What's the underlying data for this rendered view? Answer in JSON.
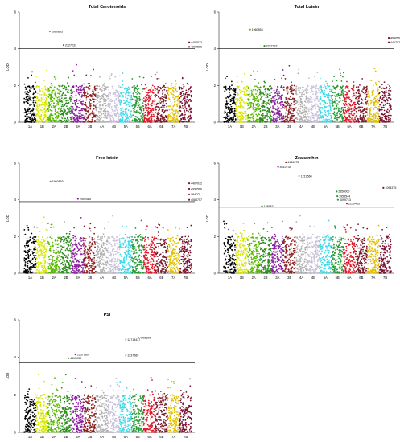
{
  "chart_data": [
    {
      "type": "scatter",
      "title": "Total Carotenoids",
      "ylabel": "LOD",
      "ylim": [
        0,
        6
      ],
      "yticks": [
        0,
        2,
        4,
        6
      ],
      "threshold": 4.0,
      "categories": [
        "1A",
        "1B",
        "2A",
        "2B",
        "3A",
        "3B",
        "4A",
        "4B",
        "5A",
        "5B",
        "6A",
        "6B",
        "7A",
        "7B"
      ],
      "peaks": [
        {
          "label": "1960853",
          "chrom": "2A",
          "pos": 0.15,
          "lod": 4.95
        },
        {
          "label": "2327237",
          "chrom": "2B",
          "pos": 0.3,
          "lod": 4.2
        },
        {
          "label": "4407072",
          "chrom": "7B",
          "pos": 0.8,
          "lod": 4.35
        },
        {
          "label": "4990566",
          "chrom": "7B",
          "pos": 0.8,
          "lod": 4.1
        }
      ]
    },
    {
      "type": "scatter",
      "title": "Total Lutein",
      "ylabel": "LOD",
      "ylim": [
        0,
        6
      ],
      "yticks": [
        0,
        2,
        4,
        6
      ],
      "threshold": 4.0,
      "categories": [
        "1A",
        "1B",
        "2A",
        "2B",
        "3A",
        "3B",
        "4A",
        "4B",
        "5A",
        "5B",
        "6A",
        "6B",
        "7A",
        "7B"
      ],
      "peaks": [
        {
          "label": "1960853",
          "chrom": "2A",
          "pos": 0.2,
          "lod": 5.05
        },
        {
          "label": "2327237",
          "chrom": "2B",
          "pos": 0.4,
          "lod": 4.15
        },
        {
          "label": "4990566",
          "chrom": "7B",
          "pos": 0.8,
          "lod": 4.6
        },
        {
          "label": "4407072",
          "chrom": "7B",
          "pos": 0.8,
          "lod": 4.35
        }
      ]
    },
    {
      "type": "scatter",
      "title": "Free lutein",
      "ylabel": "LOD",
      "ylim": [
        0,
        6
      ],
      "yticks": [
        0,
        2,
        4,
        6
      ],
      "threshold": 3.9,
      "categories": [
        "1A",
        "1B",
        "2A",
        "2B",
        "3A",
        "3B",
        "4A",
        "4B",
        "5A",
        "5B",
        "6A",
        "6B",
        "7A",
        "7B"
      ],
      "peaks": [
        {
          "label": "1960853",
          "chrom": "2A",
          "pos": 0.2,
          "lod": 5.0
        },
        {
          "label": "2902485",
          "chrom": "3A",
          "pos": 0.5,
          "lod": 4.05
        },
        {
          "label": "4407072",
          "chrom": "7B",
          "pos": 0.8,
          "lod": 4.9
        },
        {
          "label": "4990566",
          "chrom": "7B",
          "pos": 0.8,
          "lod": 4.6
        },
        {
          "label": "984770",
          "chrom": "7B",
          "pos": 0.8,
          "lod": 4.3
        },
        {
          "label": "4086757",
          "chrom": "7B",
          "pos": 0.8,
          "lod": 4.0
        }
      ]
    },
    {
      "type": "scatter",
      "title": "Zeaxanthin",
      "ylabel": "LOD",
      "ylim": [
        0,
        6
      ],
      "yticks": [
        0,
        2,
        4,
        6
      ],
      "threshold": 3.6,
      "categories": [
        "1A",
        "1B",
        "2A",
        "2B",
        "3A",
        "3B",
        "4A",
        "4B",
        "5A",
        "5B",
        "6A",
        "6B",
        "7A",
        "7B"
      ],
      "peaks": [
        {
          "label": "4136075",
          "chrom": "3B",
          "pos": 0.2,
          "lod": 6.05
        },
        {
          "label": "4610734",
          "chrom": "3A",
          "pos": 0.55,
          "lod": 5.8
        },
        {
          "label": "1219560",
          "chrom": "4A",
          "pos": 0.3,
          "lod": 5.3
        },
        {
          "label": "1094375",
          "chrom": "7B",
          "pos": 0.35,
          "lod": 4.65
        },
        {
          "label": "2358000",
          "chrom": "5B",
          "pos": 0.45,
          "lod": 4.45
        },
        {
          "label": "3955544",
          "chrom": "5B",
          "pos": 0.5,
          "lod": 4.2
        },
        {
          "label": "4099713",
          "chrom": "5B",
          "pos": 0.55,
          "lod": 4.0
        },
        {
          "label": "2250465",
          "chrom": "6A",
          "pos": 0.3,
          "lod": 3.8
        },
        {
          "label": "1385874",
          "chrom": "2B",
          "pos": 0.2,
          "lod": 3.65
        }
      ]
    },
    {
      "type": "scatter",
      "title": "PSI",
      "ylabel": "LOD",
      "ylim": [
        0,
        6
      ],
      "yticks": [
        0,
        2,
        4,
        6
      ],
      "threshold": 3.7,
      "categories": [
        "1A",
        "1B",
        "2A",
        "2B",
        "3A",
        "3B",
        "4A",
        "4B",
        "5A",
        "5B",
        "6A",
        "6B",
        "7A",
        "7B"
      ],
      "peaks": [
        {
          "label": "12713437",
          "chrom": "5A",
          "pos": 0.5,
          "lod": 4.95
        },
        {
          "label": "4496296",
          "chrom": "5B",
          "pos": 0.55,
          "lod": 5.05
        },
        {
          "label": "1237660",
          "chrom": "3A",
          "pos": 0.3,
          "lod": 4.15
        },
        {
          "label": "4413033",
          "chrom": "2B",
          "pos": 0.7,
          "lod": 3.95
        },
        {
          "label": "1237660",
          "chrom": "5A",
          "pos": 0.5,
          "lod": 4.1
        }
      ]
    }
  ],
  "colors": {
    "1A": "#000000",
    "1B": "#d8e800",
    "2A": "#58b800",
    "2B": "#2a8a1a",
    "3A": "#8a1fa0",
    "3B": "#8a1f22",
    "4A": "#b0b0b0",
    "4B": "#c8c0d8",
    "5A": "#40d8e8",
    "5B": "#2a9a38",
    "6A": "#e01828",
    "6B": "#7a1a2a",
    "7A": "#e0c000",
    "7B": "#7a1230",
    "threshold": "#000000",
    "axis": "#000000"
  }
}
